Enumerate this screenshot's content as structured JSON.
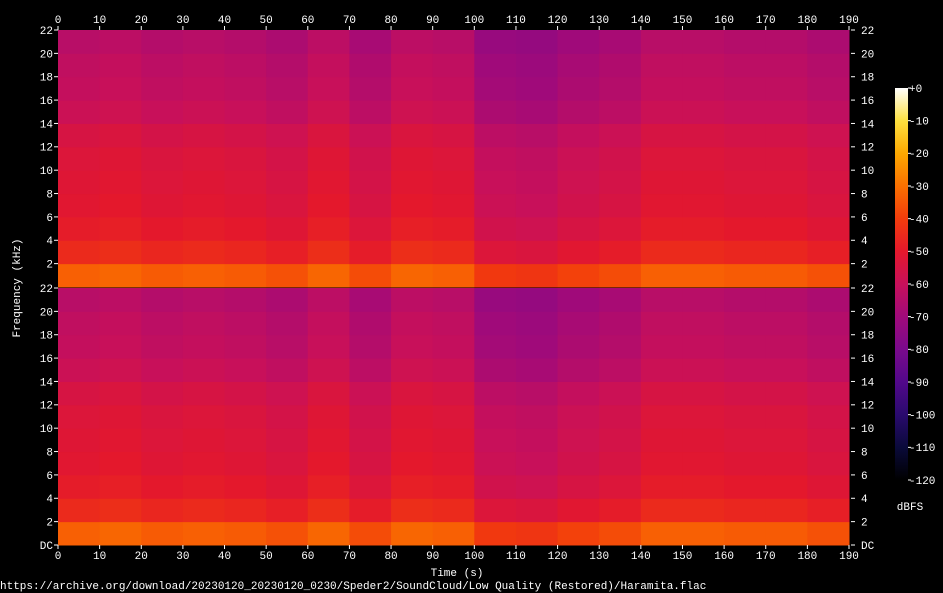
{
  "chart_data": {
    "type": "spectrogram",
    "x_label": "Time (s)",
    "y_label": "Frequency (kHz)",
    "xlim": [
      0,
      190
    ],
    "xticks": [
      0,
      10,
      20,
      30,
      40,
      50,
      60,
      70,
      80,
      90,
      100,
      110,
      120,
      130,
      140,
      150,
      160,
      170,
      180,
      190
    ],
    "time_bins": [
      0,
      10,
      20,
      30,
      40,
      50,
      60,
      70,
      80,
      90,
      100,
      110,
      120,
      130,
      140,
      150,
      160,
      170,
      180,
      190
    ],
    "freq_bins": [
      0,
      2,
      4,
      6,
      8,
      10,
      12,
      14,
      16,
      18,
      20,
      22
    ],
    "channels": [
      {
        "ylim": [
          0,
          22
        ],
        "yticks": [
          2,
          4,
          6,
          8,
          10,
          12,
          14,
          16,
          18,
          20,
          22
        ],
        "values": [
          [
            -33,
            -45,
            -49,
            -51,
            -52,
            -53,
            -55,
            -59,
            -61,
            -62,
            -64
          ],
          [
            -32,
            -44,
            -48,
            -50,
            -51,
            -52,
            -54,
            -58,
            -60,
            -61,
            -63
          ],
          [
            -34,
            -46,
            -50,
            -52,
            -53,
            -54,
            -56,
            -60,
            -62,
            -63,
            -65
          ],
          [
            -33,
            -45,
            -49,
            -51,
            -52,
            -53,
            -55,
            -59,
            -61,
            -62,
            -64
          ],
          [
            -34,
            -46,
            -50,
            -52,
            -53,
            -54,
            -56,
            -60,
            -62,
            -63,
            -65
          ],
          [
            -36,
            -48,
            -52,
            -54,
            -55,
            -56,
            -58,
            -62,
            -64,
            -65,
            -67
          ],
          [
            -32,
            -44,
            -48,
            -50,
            -51,
            -52,
            -54,
            -58,
            -60,
            -61,
            -63
          ],
          [
            -37,
            -49,
            -53,
            -55,
            -56,
            -57,
            -59,
            -63,
            -65,
            -66,
            -68
          ],
          [
            -32,
            -44,
            -48,
            -50,
            -51,
            -52,
            -54,
            -58,
            -60,
            -61,
            -63
          ],
          [
            -33,
            -45,
            -49,
            -51,
            -52,
            -53,
            -55,
            -59,
            -61,
            -62,
            -64
          ],
          [
            -41,
            -53,
            -57,
            -59,
            -60,
            -61,
            -63,
            -67,
            -69,
            -70,
            -72
          ],
          [
            -42,
            -54,
            -58,
            -60,
            -61,
            -62,
            -64,
            -68,
            -70,
            -71,
            -73
          ],
          [
            -39,
            -51,
            -55,
            -57,
            -58,
            -59,
            -61,
            -65,
            -67,
            -68,
            -70
          ],
          [
            -37,
            -49,
            -53,
            -55,
            -56,
            -57,
            -59,
            -63,
            -65,
            -66,
            -68
          ],
          [
            -33,
            -45,
            -49,
            -51,
            -52,
            -53,
            -55,
            -59,
            -61,
            -62,
            -64
          ],
          [
            -33,
            -45,
            -49,
            -51,
            -52,
            -53,
            -55,
            -59,
            -61,
            -62,
            -64
          ],
          [
            -34,
            -46,
            -50,
            -52,
            -53,
            -54,
            -56,
            -60,
            -62,
            -63,
            -65
          ],
          [
            -34,
            -46,
            -50,
            -52,
            -53,
            -54,
            -56,
            -60,
            -62,
            -63,
            -65
          ],
          [
            -36,
            -48,
            -52,
            -54,
            -55,
            -56,
            -58,
            -62,
            -64,
            -65,
            -67
          ]
        ]
      },
      {
        "ylim": [
          0,
          22
        ],
        "yticks": [
          {
            "value": 0,
            "label": "DC"
          },
          2,
          4,
          6,
          8,
          10,
          12,
          14,
          16,
          18,
          20,
          22
        ],
        "values": [
          [
            -33,
            -45,
            -49,
            -51,
            -52,
            -53,
            -55,
            -59,
            -61,
            -62,
            -64
          ],
          [
            -32,
            -44,
            -48,
            -50,
            -51,
            -52,
            -54,
            -58,
            -60,
            -61,
            -63
          ],
          [
            -34,
            -46,
            -50,
            -52,
            -53,
            -54,
            -56,
            -60,
            -62,
            -63,
            -65
          ],
          [
            -33,
            -45,
            -49,
            -51,
            -52,
            -53,
            -55,
            -59,
            -61,
            -62,
            -64
          ],
          [
            -34,
            -46,
            -50,
            -52,
            -53,
            -54,
            -56,
            -60,
            -62,
            -63,
            -65
          ],
          [
            -36,
            -48,
            -52,
            -54,
            -55,
            -56,
            -58,
            -62,
            -64,
            -65,
            -67
          ],
          [
            -32,
            -44,
            -48,
            -50,
            -51,
            -52,
            -54,
            -58,
            -60,
            -61,
            -63
          ],
          [
            -37,
            -49,
            -53,
            -55,
            -56,
            -57,
            -59,
            -63,
            -65,
            -66,
            -68
          ],
          [
            -32,
            -44,
            -48,
            -50,
            -51,
            -52,
            -54,
            -58,
            -60,
            -61,
            -63
          ],
          [
            -33,
            -45,
            -49,
            -51,
            -52,
            -53,
            -55,
            -59,
            -61,
            -62,
            -64
          ],
          [
            -41,
            -53,
            -57,
            -59,
            -60,
            -61,
            -63,
            -67,
            -69,
            -70,
            -72
          ],
          [
            -42,
            -54,
            -58,
            -60,
            -61,
            -62,
            -64,
            -68,
            -70,
            -71,
            -73
          ],
          [
            -39,
            -51,
            -55,
            -57,
            -58,
            -59,
            -61,
            -65,
            -67,
            -68,
            -70
          ],
          [
            -37,
            -49,
            -53,
            -55,
            -56,
            -57,
            -59,
            -63,
            -65,
            -66,
            -68
          ],
          [
            -33,
            -45,
            -49,
            -51,
            -52,
            -53,
            -55,
            -59,
            -61,
            -62,
            -64
          ],
          [
            -33,
            -45,
            -49,
            -51,
            -52,
            -53,
            -55,
            -59,
            -61,
            -62,
            -64
          ],
          [
            -34,
            -46,
            -50,
            -52,
            -53,
            -54,
            -56,
            -60,
            -62,
            -63,
            -65
          ],
          [
            -34,
            -46,
            -50,
            -52,
            -53,
            -54,
            -56,
            -60,
            -62,
            -63,
            -65
          ],
          [
            -36,
            -48,
            -52,
            -54,
            -55,
            -56,
            -58,
            -62,
            -64,
            -65,
            -67
          ]
        ]
      }
    ],
    "colorbar": {
      "label": "dBFS",
      "zlim": [
        -120,
        0
      ],
      "zticks": [
        {
          "value": 0,
          "label": "+0"
        },
        -10,
        -20,
        -30,
        -40,
        -50,
        -60,
        -70,
        -80,
        -90,
        -100,
        -110,
        -120
      ],
      "colors": [
        "#000000",
        "#0a0a3a",
        "#2a0a6e",
        "#52088a",
        "#7a0a8c",
        "#a00a7a",
        "#c8105a",
        "#e4182c",
        "#f23c0c",
        "#fa7000",
        "#fca800",
        "#fde040",
        "#ffffff"
      ]
    },
    "footer": "https://archive.org/download/20230120_20230120_0230/Speder2/SoundCloud/Low Quality (Restored)/Haramita.flac"
  }
}
